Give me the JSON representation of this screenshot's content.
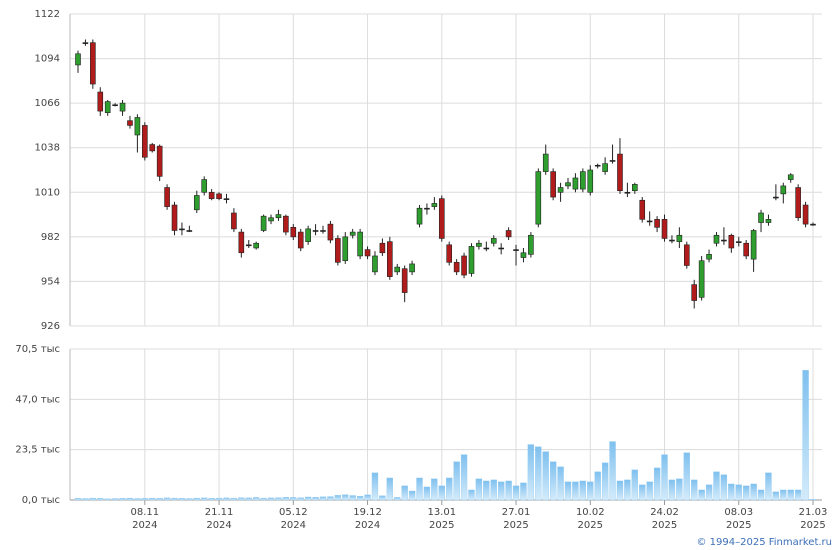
{
  "chart_data": [
    {
      "type": "candlestick",
      "up_color": "#2e9e2e",
      "down_color": "#b01c1c",
      "ylim": [
        926,
        1122
      ],
      "yticks": [
        926,
        954,
        982,
        1010,
        1038,
        1066,
        1094,
        1122
      ],
      "grid": true,
      "xticks": [
        {
          "value": 9,
          "label": "08.11",
          "year": "2024"
        },
        {
          "value": 19,
          "label": "21.11",
          "year": "2024"
        },
        {
          "value": 29,
          "label": "05.12",
          "year": "2024"
        },
        {
          "value": 39,
          "label": "19.12",
          "year": "2024"
        },
        {
          "value": 49,
          "label": "13.01",
          "year": "2025"
        },
        {
          "value": 59,
          "label": "27.01",
          "year": "2025"
        },
        {
          "value": 69,
          "label": "10.02",
          "year": "2025"
        },
        {
          "value": 79,
          "label": "24.02",
          "year": "2025"
        },
        {
          "value": 89,
          "label": "08.03",
          "year": "2025"
        },
        {
          "value": 99,
          "label": "21.03",
          "year": "2025"
        }
      ],
      "open": [
        1090,
        1104,
        1104,
        1073,
        1060,
        1065,
        1061,
        1055,
        1046,
        1052,
        1040,
        1039,
        1013,
        1002,
        987,
        986,
        999,
        1010,
        1010,
        1009,
        1006,
        997,
        985,
        977,
        975,
        986,
        992,
        994,
        995,
        988,
        985,
        979,
        986,
        986,
        990,
        981,
        967,
        983,
        970,
        974,
        960,
        978,
        979,
        960,
        962,
        960,
        990,
        1000,
        1001,
        1006,
        977,
        966,
        970,
        959,
        976,
        975,
        978,
        975,
        986,
        974,
        969,
        971,
        990,
        1023,
        1023,
        1010,
        1014,
        1012,
        1012,
        1010,
        1027,
        1023,
        1030,
        1034,
        1010,
        1011,
        1005,
        992,
        993,
        993,
        980,
        979,
        977,
        952,
        944,
        968,
        978,
        980,
        983,
        979,
        978,
        968,
        991,
        991,
        1007,
        1009,
        1018,
        1013,
        1002,
        990
      ],
      "high": [
        1099,
        1106,
        1106,
        1076,
        1068,
        1066,
        1068,
        1058,
        1059,
        1054,
        1041,
        1040,
        1015,
        1004,
        991,
        989,
        1011,
        1020,
        1012,
        1010,
        1009,
        1000,
        987,
        980,
        979,
        996,
        996,
        999,
        996,
        990,
        987,
        989,
        990,
        989,
        992,
        983,
        985,
        987,
        987,
        976,
        973,
        981,
        982,
        965,
        964,
        967,
        1002,
        1003,
        1007,
        1008,
        979,
        968,
        972,
        978,
        980,
        979,
        983,
        978,
        988,
        977,
        975,
        985,
        1025,
        1040,
        1025,
        1016,
        1019,
        1022,
        1025,
        1027,
        1028,
        1032,
        1040,
        1044,
        1016,
        1016,
        1007,
        998,
        995,
        996,
        983,
        988,
        979,
        955,
        970,
        974,
        985,
        988,
        984,
        982,
        980,
        987,
        999,
        996,
        1015,
        1016,
        1022,
        1015,
        1004,
        991
      ],
      "low": [
        1085,
        1102,
        1075,
        1058,
        1058,
        1064,
        1058,
        1050,
        1035,
        1030,
        1035,
        1017,
        999,
        983,
        983,
        985,
        997,
        1008,
        1005,
        1005,
        1003,
        985,
        969,
        975,
        974,
        985,
        990,
        992,
        983,
        980,
        973,
        977,
        983,
        984,
        978,
        964,
        965,
        981,
        968,
        968,
        958,
        970,
        955,
        958,
        941,
        958,
        988,
        996,
        999,
        979,
        964,
        958,
        956,
        957,
        974,
        973,
        976,
        971,
        980,
        964,
        966,
        969,
        988,
        1021,
        1005,
        1004,
        1012,
        1010,
        1010,
        1008,
        1025,
        1021,
        1028,
        1009,
        1007,
        1009,
        991,
        989,
        985,
        979,
        978,
        975,
        962,
        937,
        942,
        966,
        976,
        977,
        972,
        976,
        968,
        960,
        985,
        989,
        1005,
        1003,
        1016,
        992,
        988,
        989
      ],
      "close": [
        1097,
        1104,
        1078,
        1061,
        1067,
        1065,
        1066,
        1052,
        1057,
        1032,
        1036,
        1020,
        1001,
        986,
        987,
        986,
        1008,
        1018,
        1006,
        1006,
        1006,
        987,
        972,
        977,
        978,
        995,
        994,
        996,
        985,
        982,
        975,
        987,
        986,
        986,
        980,
        966,
        982,
        985,
        985,
        970,
        970,
        972,
        957,
        963,
        947,
        965,
        1000,
        1000,
        1003,
        981,
        966,
        960,
        958,
        976,
        978,
        975,
        981,
        975,
        982,
        974,
        972,
        983,
        1023,
        1034,
        1007,
        1013,
        1016,
        1019,
        1023,
        1024,
        1027,
        1028,
        1030,
        1011,
        1010,
        1015,
        993,
        992,
        988,
        981,
        980,
        983,
        964,
        942,
        967,
        971,
        983,
        980,
        975,
        979,
        970,
        986,
        997,
        993,
        1007,
        1014,
        1021,
        994,
        990,
        990
      ]
    },
    {
      "type": "bar",
      "color": "#8cc8f0",
      "ylim": [
        0,
        70.5
      ],
      "yticks": [
        {
          "value": 0,
          "label": "0,0 тыс"
        },
        {
          "value": 23.5,
          "label": "23,5 тыс"
        },
        {
          "value": 47,
          "label": "47,0 тыс"
        },
        {
          "value": 70.5,
          "label": "70,5 тыс"
        }
      ],
      "grid": true,
      "values": [
        0.8,
        0.7,
        0.9,
        0.8,
        0.6,
        0.7,
        0.8,
        0.9,
        0.7,
        0.8,
        0.9,
        0.8,
        1.0,
        0.9,
        0.8,
        0.7,
        0.9,
        1.0,
        0.8,
        0.9,
        1.0,
        0.9,
        1.1,
        1.0,
        1.2,
        0.9,
        1.0,
        1.1,
        1.3,
        1.2,
        1.1,
        1.4,
        1.3,
        1.5,
        1.6,
        2.2,
        2.5,
        2.1,
        1.8,
        2.4,
        12.7,
        2.0,
        10.3,
        1.2,
        6.6,
        4.2,
        10.3,
        6.1,
        9.9,
        6.6,
        10.3,
        17.9,
        21.2,
        4.7,
        9.9,
        8.9,
        9.4,
        8.5,
        8.9,
        6.6,
        8.0,
        25.9,
        24.9,
        22.6,
        17.9,
        15.5,
        8.5,
        8.5,
        8.9,
        8.5,
        13.2,
        17.4,
        27.3,
        8.9,
        9.4,
        14.1,
        7.1,
        8.5,
        15.0,
        21.2,
        9.4,
        9.9,
        22.1,
        9.4,
        4.7,
        7.1,
        13.2,
        11.8,
        7.5,
        7.1,
        6.6,
        7.5,
        4.7,
        12.7,
        3.8,
        4.7,
        4.7,
        4.7,
        60.6,
        0.4
      ]
    }
  ],
  "footer": "© 1994–2025 Finmarket.ru"
}
